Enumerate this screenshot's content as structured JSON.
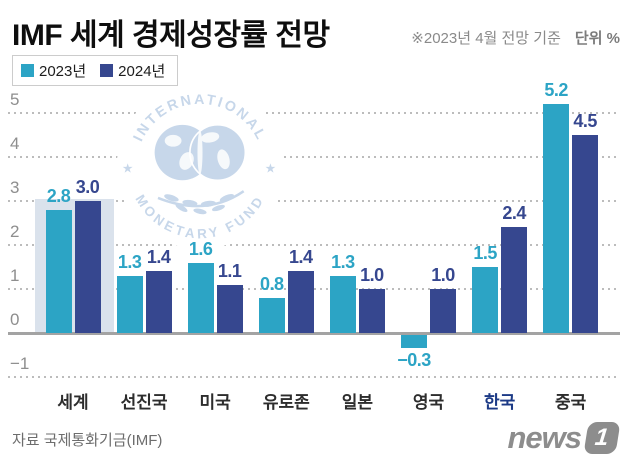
{
  "header": {
    "title": "IMF 세계 경제성장률 전망",
    "note": "※2023년 4월 전망 기준",
    "unit": "단위 %"
  },
  "chart_data": {
    "type": "bar",
    "title": "IMF 세계 경제성장률 전망",
    "categories": [
      "세계",
      "선진국",
      "미국",
      "유로존",
      "일본",
      "영국",
      "한국",
      "중국"
    ],
    "series": [
      {
        "name": "2023년",
        "color": "#2ca4c5",
        "values": [
          2.8,
          1.3,
          1.6,
          0.8,
          1.3,
          -0.3,
          1.5,
          5.2
        ]
      },
      {
        "name": "2024년",
        "color": "#36478f",
        "values": [
          3.0,
          1.4,
          1.1,
          1.4,
          1.0,
          1.0,
          2.4,
          4.5
        ]
      }
    ],
    "ylim": [
      -1,
      5
    ],
    "yticks": [
      5,
      4,
      3,
      2,
      1,
      0,
      -1
    ],
    "grid": "horizontal-dotted",
    "legend_position": "top-left",
    "value_labels": true,
    "highlighted_category": "한국",
    "band_category": "세계"
  },
  "watermark": {
    "text_top": "INTERNATIONAL",
    "text_bottom": "MONETARY FUND",
    "star": "★"
  },
  "footer": {
    "source": "자료 국제통화기금(IMF)",
    "brand_text": "news",
    "brand_badge": "1"
  },
  "colors": {
    "series_2023": "#2ca4c5",
    "series_2024": "#36478f",
    "highlight_band": "#dae2ec",
    "gridline": "#bcbcbc",
    "baseline": "#a3a3a3",
    "tick_label": "#8e8e8e",
    "axis_label": "#2d2d2d",
    "highlighted_axis_label": "#1c3a86",
    "note_text": "#8a8a8a",
    "watermark_blue": "#c7d7ea",
    "brand_gray": "#8d8d8d"
  }
}
